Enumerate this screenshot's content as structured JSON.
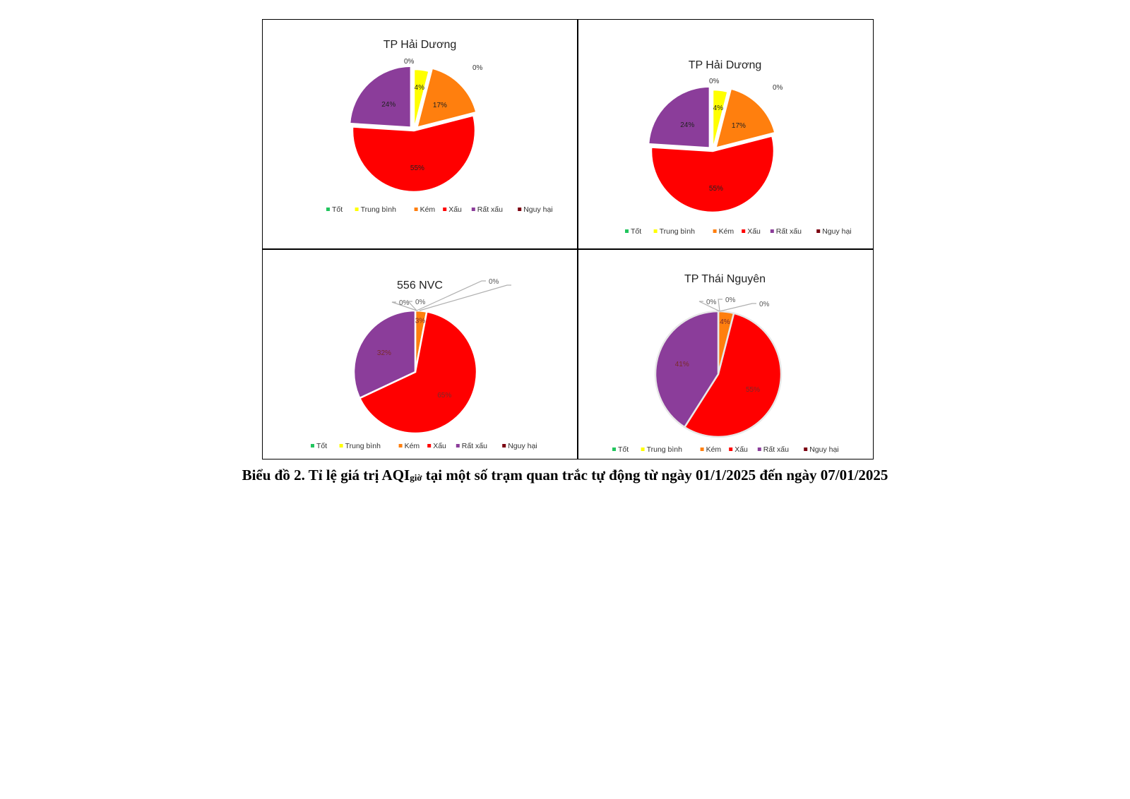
{
  "categories": [
    "Tốt",
    "Trung bình",
    "Kém",
    "Xấu",
    "Rất xấu",
    "Nguy hại"
  ],
  "colors": [
    "#22c55e",
    "#ffff00",
    "#ff7f0e",
    "#ff0000",
    "#8b3d9a",
    "#7b0010"
  ],
  "chart_data": [
    {
      "type": "pie",
      "title": "TP Hải Dương",
      "categories": [
        "Tốt",
        "Trung bình",
        "Kém",
        "Xấu",
        "Rất xấu",
        "Nguy hại"
      ],
      "values": [
        0,
        4,
        17,
        55,
        24,
        0
      ],
      "data_labels": [
        "0%",
        "4%",
        "17%",
        "55%",
        "24%",
        "0%"
      ],
      "legend": "bottom"
    },
    {
      "type": "pie",
      "title": "TP Hải Dương",
      "categories": [
        "Tốt",
        "Trung bình",
        "Kém",
        "Xấu",
        "Rất xấu",
        "Nguy hại"
      ],
      "values": [
        0,
        4,
        17,
        55,
        24,
        0
      ],
      "data_labels": [
        "0%",
        "4%",
        "17%",
        "55%",
        "24%",
        "0%"
      ],
      "legend": "bottom"
    },
    {
      "type": "pie",
      "title": "556 NVC",
      "categories": [
        "Tốt",
        "Trung bình",
        "Kém",
        "Xấu",
        "Rất xấu",
        "Nguy hại"
      ],
      "values": [
        0,
        0,
        3,
        65,
        32,
        0
      ],
      "data_labels": [
        "0%",
        "0%",
        "3%",
        "65%",
        "32%",
        "0%"
      ],
      "legend": "bottom"
    },
    {
      "type": "pie",
      "title": "TP Thái Nguyên",
      "categories": [
        "Tốt",
        "Trung bình",
        "Kém",
        "Xấu",
        "Rất xấu",
        "Nguy hại"
      ],
      "values": [
        0,
        0,
        4,
        55,
        41,
        0
      ],
      "data_labels": [
        "0%",
        "0%",
        "4%",
        "55%",
        "41%",
        "0%"
      ],
      "legend": "bottom"
    }
  ],
  "caption": {
    "prefix": "Biểu đồ 2.  Tỉ lệ giá trị AQI",
    "sub": "giờ",
    "suffix": " tại một số trạm quan trắc tự động từ ngày 01/1/2025 đến ngày 07/01/2025"
  }
}
